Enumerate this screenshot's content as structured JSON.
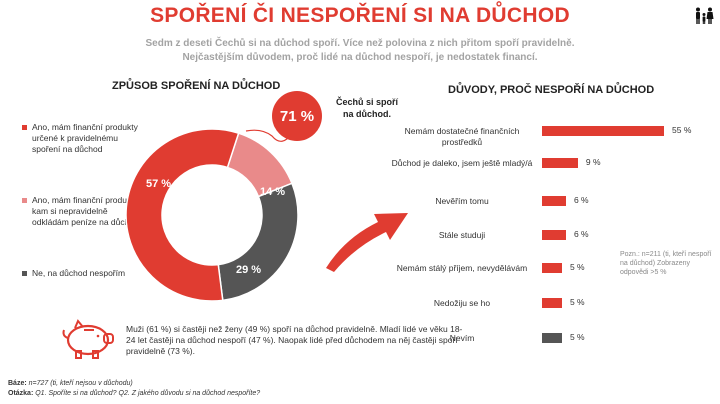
{
  "title": "SPOŘENÍ ČI NESPOŘENÍ SI NA DŮCHOD",
  "subtitle": {
    "line1": "Sedm z deseti Čechů si na důchod spoří. Více než polovina z nich přitom spoří pravidelně.",
    "line2": "Nejčastějším důvodem, proč lidé na důchod nespoří, je nedostatek financí."
  },
  "colors": {
    "red": "#e03c31",
    "pink": "#e98a8a",
    "gray": "#555555"
  },
  "badge": {
    "value": "71 %",
    "text": "Čechů si spoří na důchod."
  },
  "chart_data": [
    {
      "type": "pie",
      "title": "ZPŮSOB SPOŘENÍ NA DŮCHOD",
      "donut": true,
      "labels": [
        "Ano, mám finanční produkty určené k pravidelnému spoření na důchod",
        "Ano, mám finanční produkty, kam si nepravidelně odkládám peníze na důchod",
        "Ne, na důchod nespořím"
      ],
      "values": [
        57,
        14,
        29
      ],
      "value_labels": [
        "57 %",
        "14 %",
        "29 %"
      ],
      "colors": [
        "#e03c31",
        "#e98a8a",
        "#555555"
      ]
    },
    {
      "type": "bar",
      "orientation": "horizontal",
      "title": "DŮVODY, PROČ NESPOŘÍ NA DŮCHOD",
      "categories": [
        "Nemám dostatečné finančních prostředků",
        "Důchod je daleko, jsem ještě mladý/á",
        "Nevěřím tomu",
        "Stále studuji",
        "Nemám stálý příjem, nevydělávám",
        "Nedožiju se ho",
        "Nevím"
      ],
      "values": [
        55,
        9,
        6,
        6,
        5,
        5,
        5
      ],
      "value_labels": [
        "55 %",
        "9 %",
        "6 %",
        "6 %",
        "5 %",
        "5 %",
        "5 %"
      ],
      "colors": [
        "#e03c31",
        "#e03c31",
        "#e03c31",
        "#e03c31",
        "#e03c31",
        "#e03c31",
        "#555555"
      ],
      "xlim": [
        0,
        55
      ]
    }
  ],
  "note": "Pozn.: n=211 (ti, kteří nespoří na důchod) Zobrazeny odpovědi >5 %",
  "piggy_text": "Muži (61 %) si častěji než ženy (49 %) spoří na důchod pravidelně. Mladí lidé ve věku 18-24 let častěji na důchod nespoří (47 %). Naopak lidé před důchodem na něj častěji spoří pravidelně (73 %).",
  "footer": {
    "base_label": "Báze:",
    "base_text": " n=727 (ti, kteří nejsou v důchodu)",
    "question_label": "Otázka:",
    "question_text": " Q1. Spoříte si na důchod? Q2. Z jakého důvodu si na důchod nespoříte?"
  }
}
